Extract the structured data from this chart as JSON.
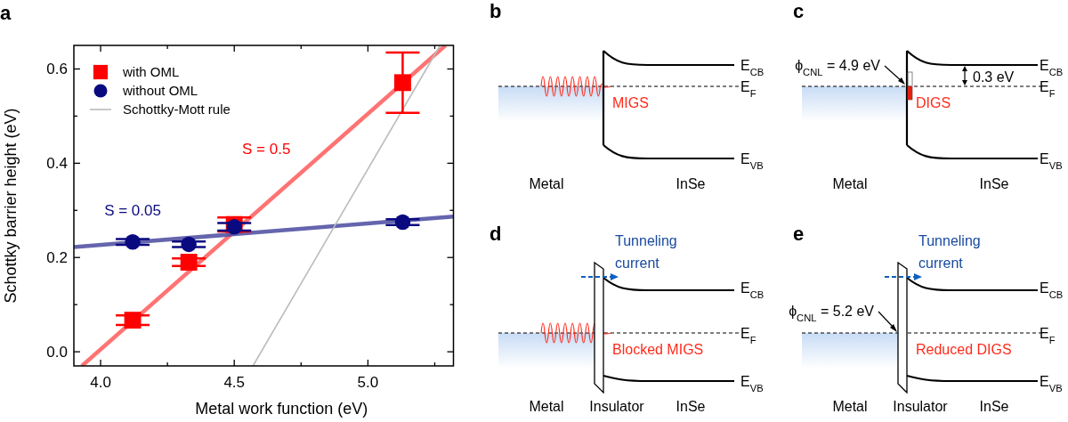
{
  "chart_data": [
    {
      "type": "scatter",
      "xlabel": "Metal work function (eV)",
      "ylabel": "Schottky barrier height (eV)",
      "xlim": [
        3.9,
        5.32
      ],
      "ylim": [
        -0.03,
        0.65
      ],
      "xticks": [
        {
          "value": 4,
          "label": "4.0"
        },
        {
          "value": 4.25,
          "label": null
        },
        4.5,
        {
          "value": 4.75,
          "label": null
        },
        {
          "value": 5,
          "label": "5.0"
        },
        {
          "value": 5.25,
          "label": null
        }
      ],
      "yticks": [
        {
          "value": 0,
          "label": "0.0"
        },
        {
          "value": 0.1,
          "label": null
        },
        0.2,
        {
          "value": 0.3,
          "label": null
        },
        0.4,
        {
          "value": 0.5,
          "label": null
        },
        0.6
      ],
      "legend": "top left",
      "grid": false,
      "annotations": [
        "a",
        "S = 0.5",
        "S = 0.05"
      ],
      "series": [
        {
          "name": "with OML",
          "type": "scatter",
          "marker": "square",
          "color": "#ff0000",
          "x": [
            4.12,
            4.33,
            4.5,
            5.13
          ],
          "values": [
            0.067,
            0.19,
            0.27,
            0.571
          ],
          "errors": [
            0.01,
            0.008,
            0.015,
            0.064
          ]
        },
        {
          "name": "without OML",
          "type": "scatter",
          "marker": "circle",
          "color": "#0a0a80",
          "x": [
            4.12,
            4.33,
            4.5,
            5.13
          ],
          "values": [
            0.233,
            0.228,
            0.265,
            0.275
          ],
          "errors": [
            0.006,
            0.006,
            0.008,
            0.006
          ]
        },
        {
          "type": "line",
          "color": "#ff5a5a",
          "x": [
            3.93,
            5.29
          ],
          "values": [
            -0.03,
            0.65
          ]
        },
        {
          "type": "line",
          "color": "#4a4aa0",
          "x": [
            3.9,
            5.32
          ],
          "values": [
            0.222,
            0.287
          ]
        },
        {
          "name": "Schottky-Mott rule",
          "type": "line",
          "color": "#bbbbbb",
          "x": [
            4.57,
            5.27
          ],
          "values": [
            -0.03,
            0.65
          ]
        }
      ]
    },
    {
      "type": "other",
      "annotations": [
        "b",
        "Metal",
        "InSe",
        "E$_{CB}$",
        "E$_{F}$",
        "E$_{VB}$",
        "MIGS",
        "c",
        "Metal",
        "InSe",
        "E$_{CB}$",
        "E$_{F}$",
        "E$_{VB}$",
        "DIGS",
        "ϕ$_{CNL}$ = 4.9 eV",
        "0.3 eV",
        "d",
        "Metal",
        "Insulator",
        "InSe",
        "E$_{CB}$",
        "E$_{F}$",
        "E$_{VB}$",
        "Blocked MIGS",
        "Tunneling",
        "current",
        "e",
        "Metal",
        "Insulator",
        "InSe",
        "E$_{CB}$",
        "E$_{F}$",
        "E$_{VB}$",
        "Reduced DIGS",
        "Tunneling",
        "current",
        "ϕ$_{CNL}$ = 5.2 eV"
      ]
    }
  ]
}
